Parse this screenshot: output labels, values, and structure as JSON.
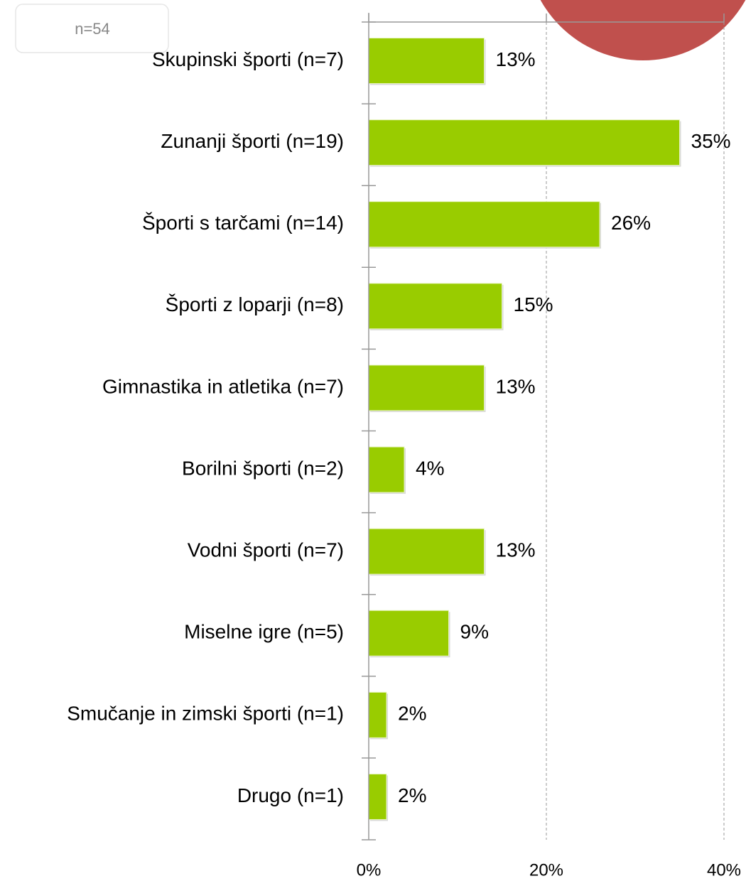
{
  "chart_data": {
    "type": "barh",
    "annotation": "n=54",
    "categories": [
      "Skupinski športi (n=7)",
      "Zunanji športi (n=19)",
      "Športi s tarčami (n=14)",
      "Športi z loparji (n=8)",
      "Gimnastika in atletika (n=7)",
      "Borilni športi (n=2)",
      "Vodni športi (n=7)",
      "Miselne igre (n=5)",
      "Smučanje in zimski športi (n=1)",
      "Drugo (n=1)"
    ],
    "values": [
      13,
      35,
      26,
      15,
      13,
      4,
      13,
      9,
      2,
      2
    ],
    "value_labels": [
      "13%",
      "35%",
      "26%",
      "15%",
      "13%",
      "4%",
      "13%",
      "9%",
      "2%",
      "2%"
    ],
    "color": "#99cc00",
    "xlim": [
      0,
      40
    ],
    "xticks": [
      {
        "value": 0,
        "label": "0%"
      },
      {
        "value": 20,
        "label": "20%"
      },
      {
        "value": 40,
        "label": "40%"
      }
    ],
    "grid": true
  }
}
